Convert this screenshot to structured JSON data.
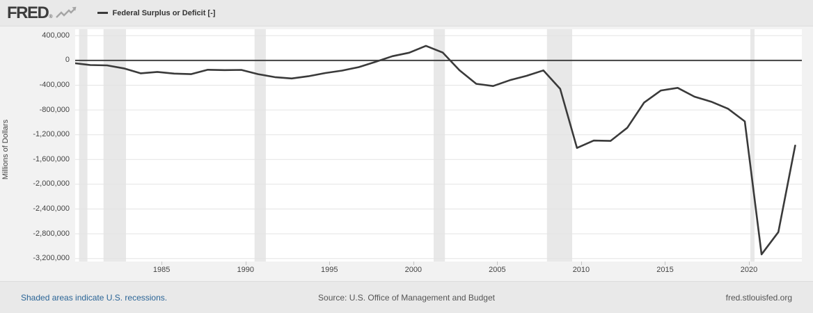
{
  "header": {
    "logo_text": "FRED",
    "registered_mark": "®",
    "series_label": "Federal Surplus or Deficit [-]"
  },
  "footer": {
    "recessions_note": "Shaded areas indicate U.S. recessions.",
    "source": "Source: U.S. Office of Management and Budget",
    "site": "fred.stlouisfed.org"
  },
  "colors": {
    "background": "#eaeaea",
    "surround": "#f2f2f2",
    "plot_background": "#ffffff",
    "gridline": "#e3e3e3",
    "zero_line": "#424242",
    "series_line": "#3a3a3a",
    "recession_band": "#e8e8e8",
    "axis_text": "#444444",
    "link_blue": "#2a6496",
    "logo_gray": "#3d3d3d"
  },
  "chart_data": {
    "type": "line",
    "title": "Federal Surplus or Deficit [-]",
    "ylabel": "Millions of Dollars",
    "xlabel": "",
    "grid": "horizontal",
    "legend_position": "top-left-header",
    "xlim": [
      1979.85,
      2023.15
    ],
    "ylim": [
      -3248000,
      505000
    ],
    "x_ticks": [
      1985,
      1990,
      1995,
      2000,
      2005,
      2010,
      2015,
      2020
    ],
    "y_ticks": [
      {
        "value": 400000,
        "label": "400,000"
      },
      {
        "value": 0,
        "label": "0"
      },
      {
        "value": -400000,
        "label": "-400,000"
      },
      {
        "value": -800000,
        "label": "-800,000"
      },
      {
        "value": -1200000,
        "label": "-1,200,000"
      },
      {
        "value": -1600000,
        "label": "-1,600,000"
      },
      {
        "value": -2000000,
        "label": "-2,000,000"
      },
      {
        "value": -2400000,
        "label": "-2,400,000"
      },
      {
        "value": -2800000,
        "label": "-2,800,000"
      },
      {
        "value": -3200000,
        "label": "-3,200,000"
      }
    ],
    "recessions": [
      [
        1980.08,
        1980.58
      ],
      [
        1981.54,
        1982.88
      ],
      [
        1990.54,
        1991.21
      ],
      [
        2001.21,
        2001.88
      ],
      [
        2007.96,
        2009.46
      ],
      [
        2020.08,
        2020.33
      ]
    ],
    "series": [
      {
        "name": "Federal Surplus or Deficit [-]",
        "units": "Millions of Dollars",
        "points": [
          [
            1979.75,
            -40729
          ],
          [
            1980.75,
            -73830
          ],
          [
            1981.75,
            -78968
          ],
          [
            1982.75,
            -127977
          ],
          [
            1983.75,
            -207802
          ],
          [
            1984.75,
            -185367
          ],
          [
            1985.75,
            -212308
          ],
          [
            1986.75,
            -221227
          ],
          [
            1987.75,
            -149730
          ],
          [
            1988.75,
            -155178
          ],
          [
            1989.75,
            -152639
          ],
          [
            1990.75,
            -221036
          ],
          [
            1991.75,
            -269238
          ],
          [
            1992.75,
            -290321
          ],
          [
            1993.75,
            -255051
          ],
          [
            1994.75,
            -203186
          ],
          [
            1995.75,
            -163952
          ],
          [
            1996.75,
            -107431
          ],
          [
            1997.75,
            -21884
          ],
          [
            1998.75,
            69270
          ],
          [
            1999.75,
            125610
          ],
          [
            2000.75,
            236241
          ],
          [
            2001.75,
            128236
          ],
          [
            2002.75,
            -157758
          ],
          [
            2003.75,
            -377585
          ],
          [
            2004.75,
            -412727
          ],
          [
            2005.75,
            -318346
          ],
          [
            2006.75,
            -248181
          ],
          [
            2007.75,
            -160701
          ],
          [
            2008.75,
            -458553
          ],
          [
            2009.75,
            -1412688
          ],
          [
            2010.75,
            -1294373
          ],
          [
            2011.75,
            -1299595
          ],
          [
            2012.75,
            -1086963
          ],
          [
            2013.75,
            -679545
          ],
          [
            2014.75,
            -484602
          ],
          [
            2015.75,
            -441960
          ],
          [
            2016.75,
            -584651
          ],
          [
            2017.75,
            -665446
          ],
          [
            2018.75,
            -779137
          ],
          [
            2019.75,
            -983591
          ],
          [
            2020.75,
            -3131917
          ],
          [
            2021.75,
            -2772178
          ],
          [
            2022.75,
            -1375389
          ]
        ]
      }
    ]
  }
}
